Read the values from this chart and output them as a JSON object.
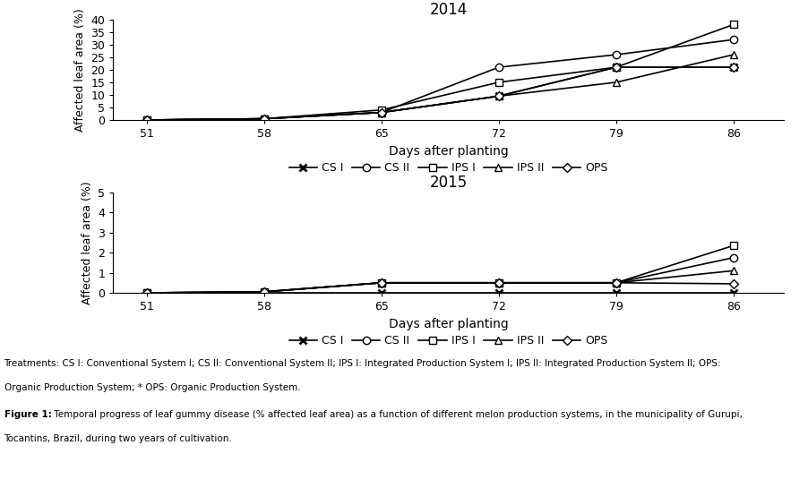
{
  "days": [
    51,
    58,
    65,
    72,
    79,
    86
  ],
  "year1": {
    "title": "2014",
    "ylim": [
      0,
      40
    ],
    "yticks": [
      0,
      5,
      10,
      15,
      20,
      25,
      30,
      35,
      40
    ],
    "series": {
      "CS I": [
        0,
        0.5,
        3.0,
        9.5,
        21.0,
        21.0
      ],
      "CS II": [
        0,
        0.5,
        3.0,
        21.0,
        26.0,
        32.0
      ],
      "IPS I": [
        0,
        0.5,
        4.0,
        15.0,
        21.0,
        38.0
      ],
      "IPS II": [
        0,
        0.5,
        3.0,
        9.5,
        15.0,
        26.0
      ],
      "OPS": [
        0,
        0.5,
        3.0,
        9.5,
        21.0,
        21.0
      ]
    }
  },
  "year2": {
    "title": "2015",
    "ylim": [
      0,
      5
    ],
    "yticks": [
      0,
      1,
      2,
      3,
      4,
      5
    ],
    "series": {
      "CS I": [
        0,
        0.0,
        0.0,
        0.0,
        0.0,
        0.0
      ],
      "CS II": [
        0,
        0.05,
        0.5,
        0.5,
        0.5,
        1.75
      ],
      "IPS I": [
        0,
        0.05,
        0.5,
        0.5,
        0.5,
        2.35
      ],
      "IPS II": [
        0,
        0.05,
        0.5,
        0.5,
        0.5,
        1.1
      ],
      "OPS": [
        0,
        0.05,
        0.5,
        0.5,
        0.5,
        0.45
      ]
    }
  },
  "xlabel": "Days after planting",
  "ylabel": "Affected leaf area (%)",
  "xticks": [
    51,
    58,
    65,
    72,
    79,
    86
  ],
  "legend_labels": [
    "CS I",
    "CS II",
    "IPS I",
    "IPS II",
    "OPS"
  ],
  "treatments_line1": "Treatments: CS I: Conventional System I; CS II: Conventional System II; IPS I: Integrated Production System I; IPS II: Integrated Production System II; OPS:",
  "treatments_line2": "Organic Production System; * OPS: Organic Production System.",
  "figure_bold": "Figure 1:",
  "figure_rest": " Temporal progress of leaf gummy disease (% affected leaf area) as a function of different melon production systems, in the municipality of Gurupi,",
  "figure_line2": "Tocantins, Brazil, during two years of cultivation."
}
